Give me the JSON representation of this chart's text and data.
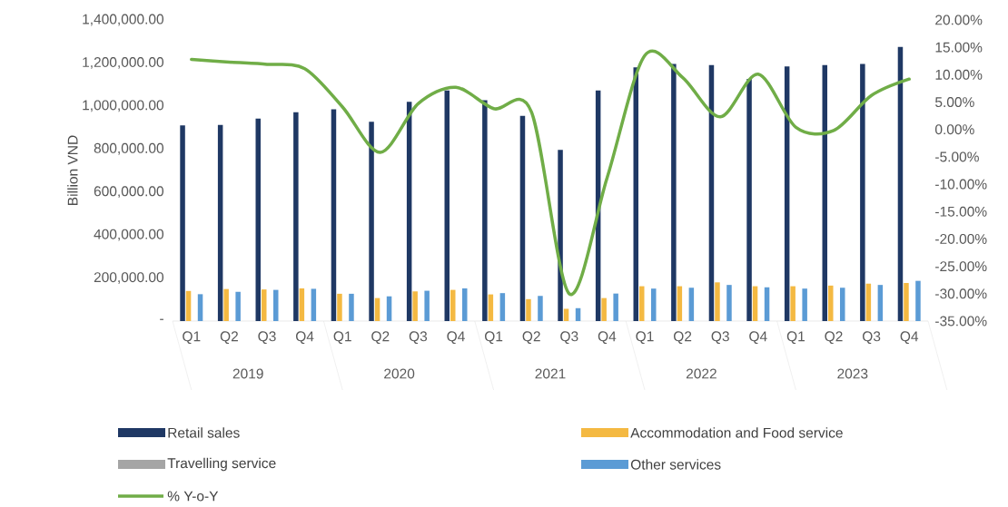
{
  "chart_data": {
    "type": "bar",
    "ylabel": "Billion VND",
    "categories": [
      "Q1",
      "Q2",
      "Q3",
      "Q4",
      "Q1",
      "Q2",
      "Q3",
      "Q4",
      "Q1",
      "Q2",
      "Q3",
      "Q4",
      "Q1",
      "Q2",
      "Q3",
      "Q4",
      "Q1",
      "Q2",
      "Q3",
      "Q4"
    ],
    "annotations": [
      "2019",
      "2020",
      "2021",
      "2022",
      "2023"
    ],
    "series": [
      {
        "name": "Retail sales",
        "color": "#1f3864",
        "values": [
          910000,
          912000,
          941000,
          971000,
          985000,
          927000,
          1019000,
          1072000,
          1027000,
          954000,
          796000,
          1072000,
          1180000,
          1195000,
          1190000,
          1126000,
          1184000,
          1190000,
          1195000,
          1275000
        ]
      },
      {
        "name": "Accommodation and Food service",
        "color": "#f4b942",
        "values": [
          140000,
          149000,
          147000,
          152000,
          127000,
          107000,
          138000,
          145000,
          124000,
          102000,
          57000,
          107000,
          162000,
          162000,
          180000,
          162000,
          162000,
          165000,
          174000,
          177000
        ]
      },
      {
        "name": "Travelling service",
        "color": "#a5a5a5",
        "values": [
          null,
          null,
          null,
          null,
          null,
          null,
          null,
          null,
          null,
          null,
          null,
          null,
          null,
          null,
          null,
          null,
          null,
          null,
          null,
          null
        ]
      },
      {
        "name": "Other services",
        "color": "#5b9bd5",
        "values": [
          125000,
          136000,
          145000,
          150000,
          127000,
          115000,
          141000,
          152000,
          130000,
          117000,
          60000,
          128000,
          151000,
          155000,
          168000,
          157000,
          151000,
          155000,
          168000,
          187000
        ]
      },
      {
        "name": "% Y-o-Y",
        "color": "#70ad47",
        "type": "line",
        "axis": "y2",
        "values": [
          12.8,
          12.3,
          11.9,
          11.1,
          4.1,
          -4.2,
          4.7,
          7.7,
          3.8,
          3.2,
          -30.0,
          -8.9,
          13.5,
          9.5,
          2.3,
          10.1,
          0.4,
          -0.2,
          6.2,
          9.2
        ]
      }
    ],
    "ylim": [
      0,
      1400000
    ],
    "yticks": [
      {
        "value": 0,
        "label": "-"
      },
      {
        "value": 200000,
        "label": "200,000.00"
      },
      {
        "value": 400000,
        "label": "400,000.00"
      },
      {
        "value": 600000,
        "label": "600,000.00"
      },
      {
        "value": 800000,
        "label": "800,000.00"
      },
      {
        "value": 1000000,
        "label": "1,000,000.00"
      },
      {
        "value": 1200000,
        "label": "1,200,000.00"
      },
      {
        "value": 1400000,
        "label": "1,400,000.00"
      }
    ],
    "y2lim": [
      -35,
      20
    ],
    "y2ticks": [
      {
        "value": -35,
        "label": "-35.00%"
      },
      {
        "value": -30,
        "label": "-30.00%"
      },
      {
        "value": -25,
        "label": "-25.00%"
      },
      {
        "value": -20,
        "label": "-20.00%"
      },
      {
        "value": -15,
        "label": "-15.00%"
      },
      {
        "value": -10,
        "label": "-10.00%"
      },
      {
        "value": -5,
        "label": "-5.00%"
      },
      {
        "value": 0,
        "label": "0.00%"
      },
      {
        "value": 5,
        "label": "5.00%"
      },
      {
        "value": 10,
        "label": "10.00%"
      },
      {
        "value": 15,
        "label": "15.00%"
      },
      {
        "value": 20,
        "label": "20.00%"
      }
    ],
    "legend": "bottom"
  }
}
